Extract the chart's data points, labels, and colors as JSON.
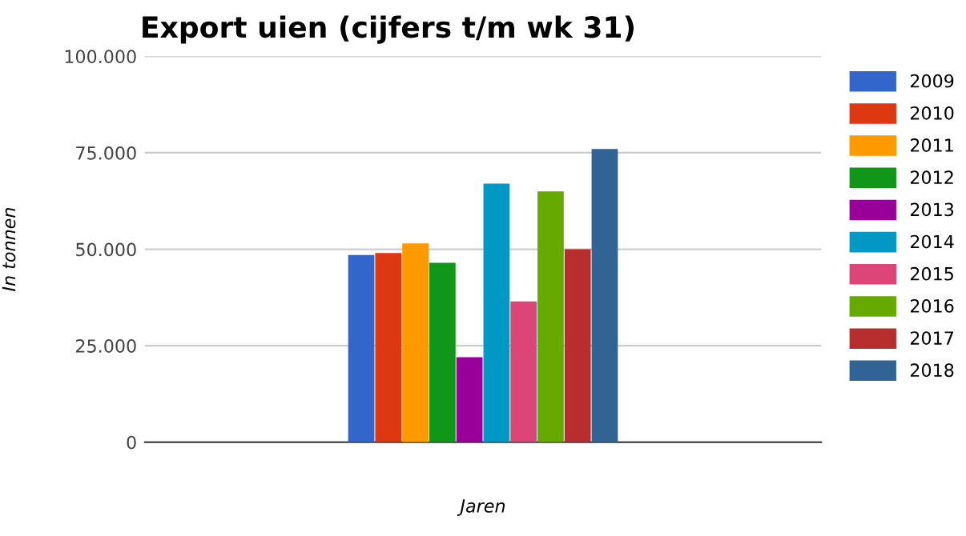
{
  "chart_data": {
    "type": "bar",
    "title": "Export uien (cijfers t/m wk 31)",
    "xlabel": "Jaren",
    "ylabel": "In tonnen",
    "categories": [
      null
    ],
    "series": [
      {
        "name": "2009",
        "color": "#3366cc",
        "values": [
          48500
        ]
      },
      {
        "name": "2010",
        "color": "#dc3912",
        "values": [
          49000
        ]
      },
      {
        "name": "2011",
        "color": "#ff9900",
        "values": [
          51500
        ]
      },
      {
        "name": "2012",
        "color": "#109618",
        "values": [
          46500
        ]
      },
      {
        "name": "2013",
        "color": "#990099",
        "values": [
          22000
        ]
      },
      {
        "name": "2014",
        "color": "#0099c6",
        "values": [
          67000
        ]
      },
      {
        "name": "2015",
        "color": "#dd4477",
        "values": [
          36500
        ]
      },
      {
        "name": "2016",
        "color": "#66aa00",
        "values": [
          65000
        ]
      },
      {
        "name": "2017",
        "color": "#b82e2e",
        "values": [
          50000
        ]
      },
      {
        "name": "2018",
        "color": "#316395",
        "values": [
          76000
        ]
      }
    ],
    "ylim": [
      0,
      100000
    ],
    "yticks": [
      {
        "value": 0,
        "label": "0"
      },
      {
        "value": 25000,
        "label": "25.000"
      },
      {
        "value": 50000,
        "label": "50.000"
      },
      {
        "value": 75000,
        "label": "75.000"
      },
      {
        "value": 100000,
        "label": "100.000"
      }
    ],
    "grid": "y",
    "legend": "right"
  }
}
